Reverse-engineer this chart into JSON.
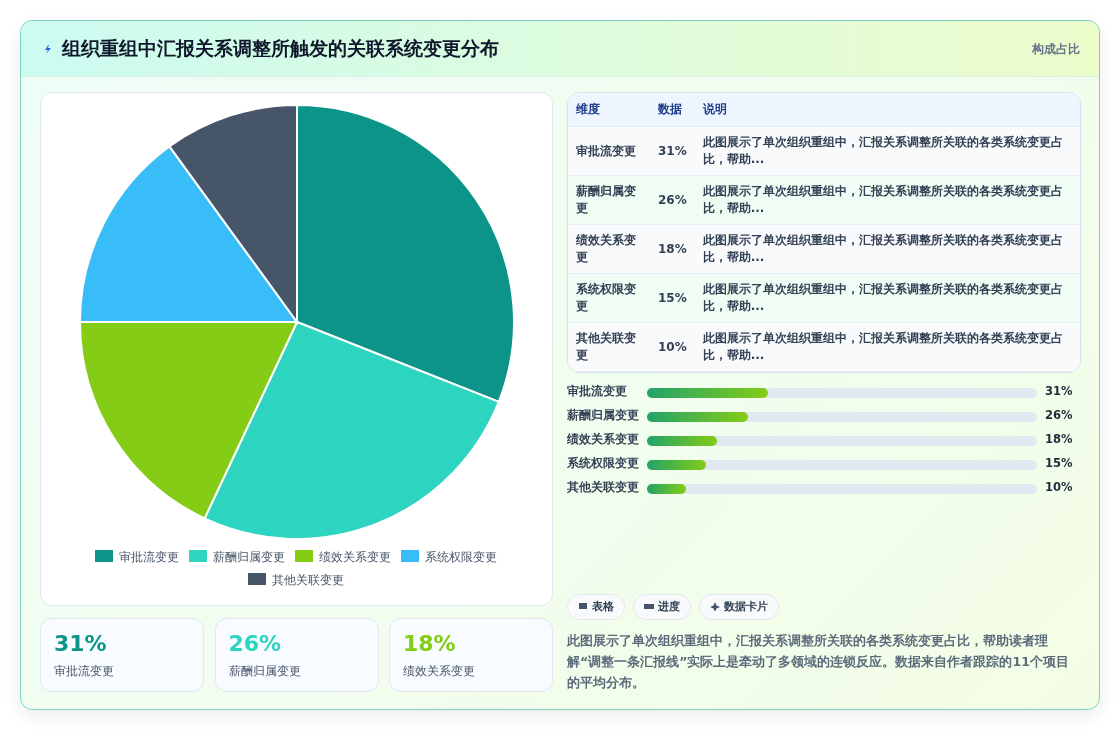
{
  "chart_data": [
    {
      "type": "pie",
      "title": "组织重组中汇报关系调整所触发的关联系统变更分布",
      "annotations": [
        "构成占比"
      ],
      "categories": [
        "审批流变更",
        "薪酬归属变更",
        "绩效关系变更",
        "系统权限变更",
        "其他关联变更"
      ],
      "values": [
        31,
        26,
        18,
        15,
        10
      ],
      "colors": [
        "#0d9488",
        "#2dd4bf",
        "#84cc16",
        "#38bdf8",
        "#475569"
      ],
      "legend": "bottom"
    },
    {
      "type": "other",
      "annotations": [
        "维度",
        "数据",
        "说明",
        "审批流变更",
        "31%",
        "此图展示了单次组织重组中，汇报关系调整所关联的各类系统变更占比，帮助...",
        "薪酬归属变更",
        "26%",
        "此图展示了单次组织重组中，汇报关系调整所关联的各类系统变更占比，帮助...",
        "绩效关系变更",
        "18%",
        "此图展示了单次组织重组中，汇报关系调整所关联的各类系统变更占比，帮助...",
        "系统权限变更",
        "15%",
        "此图展示了单次组织重组中，汇报关系调整所关联的各类系统变更占比，帮助...",
        "其他关联变更",
        "10%",
        "此图展示了单次组织重组中，汇报关系调整所关联的各类系统变更占比，帮助..."
      ]
    },
    {
      "type": "bar",
      "orientation": "horizontal",
      "categories": [
        "审批流变更",
        "薪酬归属变更",
        "绩效关系变更",
        "系统权限变更",
        "其他关联变更"
      ],
      "values": [
        31,
        26,
        18,
        15,
        10
      ],
      "value_labels": [
        "31%",
        "26%",
        "18%",
        "15%",
        "10%"
      ],
      "xlim": [
        0,
        100
      ],
      "color": "#22a36a",
      "tick_labels": "y"
    },
    {
      "type": "other",
      "annotations": [
        "31%",
        "审批流变更",
        "26%",
        "薪酬归属变更",
        "18%",
        "绩效关系变更"
      ]
    },
    {
      "type": "other",
      "annotations": [
        "表格",
        "进度",
        "数据卡片",
        "此图展示了单次组织重组中，汇报关系调整所关联的各类系统变更占比，帮助读者理解“调整一条汇报线”实际上是牵动了多领域的连锁反应。数据来自作者跟踪的11个项目的平均分布。"
      ]
    }
  ]
}
